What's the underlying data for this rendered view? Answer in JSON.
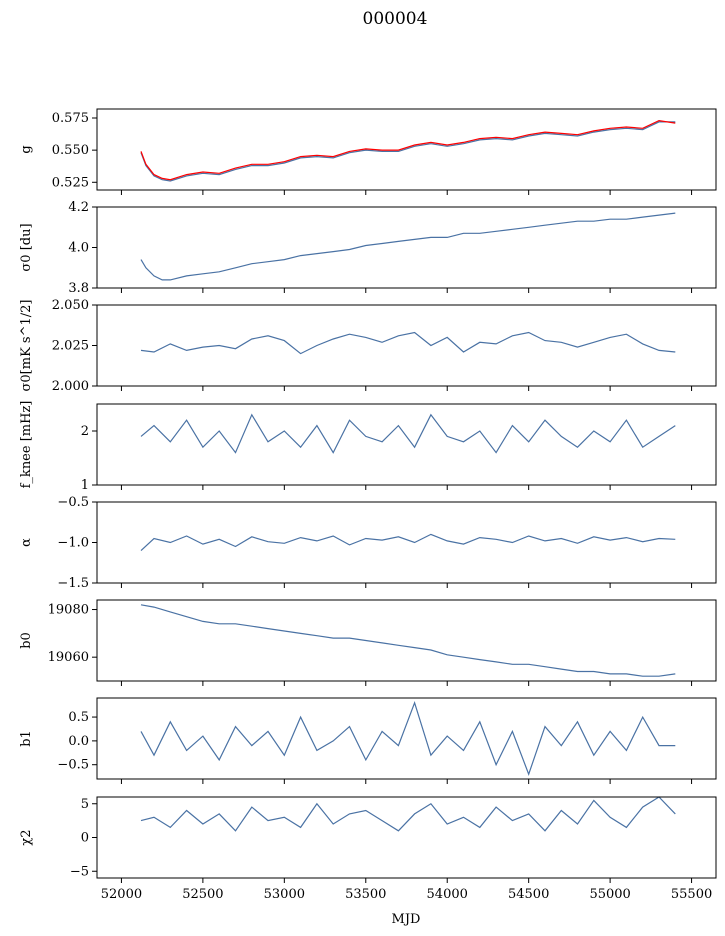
{
  "figure": {
    "title": "000004",
    "xlabel": "MJD",
    "series_color": "#4a72a4",
    "overlay_color": "#ff0000"
  },
  "chart_data": [
    {
      "type": "line",
      "ylabel": "g",
      "xlim": [
        51850,
        55650
      ],
      "ylim": [
        0.519,
        0.582
      ],
      "yticks": [
        "0.525",
        "0.550",
        "0.575"
      ],
      "ytick_values": [
        0.525,
        0.55,
        0.575
      ],
      "series": [
        {
          "x": [
            52120,
            52150,
            52200,
            52250,
            52300,
            52400,
            52500,
            52600,
            52700,
            52800,
            52900,
            53000,
            53100,
            53200,
            53300,
            53400,
            53500,
            53600,
            53700,
            53800,
            53900,
            54000,
            54100,
            54200,
            54300,
            54400,
            54500,
            54600,
            54700,
            54800,
            54900,
            55000,
            55100,
            55200,
            55300,
            55400
          ],
          "y": [
            0.548,
            0.538,
            0.53,
            0.527,
            0.526,
            0.53,
            0.532,
            0.531,
            0.535,
            0.538,
            0.538,
            0.54,
            0.544,
            0.545,
            0.544,
            0.548,
            0.55,
            0.549,
            0.549,
            0.553,
            0.555,
            0.553,
            0.555,
            0.558,
            0.559,
            0.558,
            0.561,
            0.563,
            0.562,
            0.561,
            0.564,
            0.566,
            0.567,
            0.566,
            0.572,
            0.572
          ]
        },
        {
          "x": [
            52120,
            52150,
            52200,
            52250,
            52300,
            52400,
            52500,
            52600,
            52700,
            52800,
            52900,
            53000,
            53100,
            53200,
            53300,
            53400,
            53500,
            53600,
            53700,
            53800,
            53900,
            54000,
            54100,
            54200,
            54300,
            54400,
            54500,
            54600,
            54700,
            54800,
            54900,
            55000,
            55100,
            55200,
            55300,
            55400
          ],
          "y": [
            0.549,
            0.539,
            0.531,
            0.528,
            0.527,
            0.531,
            0.533,
            0.532,
            0.536,
            0.539,
            0.539,
            0.541,
            0.545,
            0.546,
            0.545,
            0.549,
            0.551,
            0.55,
            0.55,
            0.554,
            0.556,
            0.554,
            0.556,
            0.559,
            0.56,
            0.559,
            0.562,
            0.564,
            0.563,
            0.562,
            0.565,
            0.567,
            0.568,
            0.567,
            0.573,
            0.571
          ]
        }
      ]
    },
    {
      "type": "line",
      "ylabel": "σ0 [du]",
      "xlim": [
        51850,
        55650
      ],
      "ylim": [
        3.8,
        4.2
      ],
      "yticks": [
        "3.8",
        "4.0",
        "4.2"
      ],
      "ytick_values": [
        3.8,
        4.0,
        4.2
      ],
      "x": [
        52120,
        52150,
        52200,
        52250,
        52300,
        52400,
        52500,
        52600,
        52700,
        52800,
        52900,
        53000,
        53100,
        53200,
        53300,
        53400,
        53500,
        53600,
        53700,
        53800,
        53900,
        54000,
        54100,
        54200,
        54300,
        54400,
        54500,
        54600,
        54700,
        54800,
        54900,
        55000,
        55100,
        55200,
        55300,
        55400
      ],
      "y": [
        3.94,
        3.9,
        3.86,
        3.84,
        3.84,
        3.86,
        3.87,
        3.88,
        3.9,
        3.92,
        3.93,
        3.94,
        3.96,
        3.97,
        3.98,
        3.99,
        4.01,
        4.02,
        4.03,
        4.04,
        4.05,
        4.05,
        4.07,
        4.07,
        4.08,
        4.09,
        4.1,
        4.11,
        4.12,
        4.13,
        4.13,
        4.14,
        4.14,
        4.15,
        4.16,
        4.17
      ]
    },
    {
      "type": "line",
      "ylabel": "σ0[mK s^1/2]",
      "xlim": [
        51850,
        55650
      ],
      "ylim": [
        2.0,
        2.05
      ],
      "yticks": [
        "2.000",
        "2.025",
        "2.050"
      ],
      "ytick_values": [
        2.0,
        2.025,
        2.05
      ],
      "x": [
        52120,
        52200,
        52300,
        52400,
        52500,
        52600,
        52700,
        52800,
        52900,
        53000,
        53100,
        53200,
        53300,
        53400,
        53500,
        53600,
        53700,
        53800,
        53900,
        54000,
        54100,
        54200,
        54300,
        54400,
        54500,
        54600,
        54700,
        54800,
        54900,
        55000,
        55100,
        55200,
        55300,
        55400
      ],
      "y": [
        2.022,
        2.021,
        2.026,
        2.022,
        2.024,
        2.025,
        2.023,
        2.029,
        2.031,
        2.028,
        2.02,
        2.025,
        2.029,
        2.032,
        2.03,
        2.027,
        2.031,
        2.033,
        2.025,
        2.03,
        2.021,
        2.027,
        2.026,
        2.031,
        2.033,
        2.028,
        2.027,
        2.024,
        2.027,
        2.03,
        2.032,
        2.026,
        2.022,
        2.021
      ]
    },
    {
      "type": "line",
      "ylabel": "f_knee [mHz]",
      "xlim": [
        51850,
        55650
      ],
      "ylim": [
        1.0,
        2.5
      ],
      "yticks": [
        "1",
        "2"
      ],
      "ytick_values": [
        1,
        2
      ],
      "x": [
        52120,
        52200,
        52300,
        52400,
        52500,
        52600,
        52700,
        52800,
        52900,
        53000,
        53100,
        53200,
        53300,
        53400,
        53500,
        53600,
        53700,
        53800,
        53900,
        54000,
        54100,
        54200,
        54300,
        54400,
        54500,
        54600,
        54700,
        54800,
        54900,
        55000,
        55100,
        55200,
        55300,
        55400
      ],
      "y": [
        1.9,
        2.1,
        1.8,
        2.2,
        1.7,
        2.0,
        1.6,
        2.3,
        1.8,
        2.0,
        1.7,
        2.1,
        1.6,
        2.2,
        1.9,
        1.8,
        2.1,
        1.7,
        2.3,
        1.9,
        1.8,
        2.0,
        1.6,
        2.1,
        1.8,
        2.2,
        1.9,
        1.7,
        2.0,
        1.8,
        2.2,
        1.7,
        1.9,
        2.1
      ]
    },
    {
      "type": "line",
      "ylabel": "α",
      "xlim": [
        51850,
        55650
      ],
      "ylim": [
        -1.5,
        -0.5
      ],
      "yticks": [
        "−1.5",
        "−1.0",
        "−0.5"
      ],
      "ytick_values": [
        -1.5,
        -1.0,
        -0.5
      ],
      "x": [
        52120,
        52200,
        52300,
        52400,
        52500,
        52600,
        52700,
        52800,
        52900,
        53000,
        53100,
        53200,
        53300,
        53400,
        53500,
        53600,
        53700,
        53800,
        53900,
        54000,
        54100,
        54200,
        54300,
        54400,
        54500,
        54600,
        54700,
        54800,
        54900,
        55000,
        55100,
        55200,
        55300,
        55400
      ],
      "y": [
        -1.1,
        -0.95,
        -1.0,
        -0.92,
        -1.02,
        -0.96,
        -1.05,
        -0.93,
        -0.99,
        -1.01,
        -0.94,
        -0.98,
        -0.92,
        -1.03,
        -0.95,
        -0.97,
        -0.93,
        -1.0,
        -0.9,
        -0.98,
        -1.02,
        -0.94,
        -0.96,
        -1.0,
        -0.92,
        -0.98,
        -0.95,
        -1.01,
        -0.93,
        -0.97,
        -0.94,
        -0.99,
        -0.95,
        -0.96
      ]
    },
    {
      "type": "line",
      "ylabel": "b0",
      "xlim": [
        51850,
        55650
      ],
      "ylim": [
        19050,
        19084
      ],
      "yticks": [
        "19060",
        "19080"
      ],
      "ytick_values": [
        19060,
        19080
      ],
      "x": [
        52120,
        52200,
        52300,
        52400,
        52500,
        52600,
        52700,
        52800,
        52900,
        53000,
        53100,
        53200,
        53300,
        53400,
        53500,
        53600,
        53700,
        53800,
        53900,
        54000,
        54100,
        54200,
        54300,
        54400,
        54500,
        54600,
        54700,
        54800,
        54900,
        55000,
        55100,
        55200,
        55300,
        55400
      ],
      "y": [
        19082,
        19081,
        19079,
        19077,
        19075,
        19074,
        19074,
        19073,
        19072,
        19071,
        19070,
        19069,
        19068,
        19068,
        19067,
        19066,
        19065,
        19064,
        19063,
        19061,
        19060,
        19059,
        19058,
        19057,
        19057,
        19056,
        19055,
        19054,
        19054,
        19053,
        19053,
        19052,
        19052,
        19053
      ]
    },
    {
      "type": "line",
      "ylabel": "b1",
      "xlim": [
        51850,
        55650
      ],
      "ylim": [
        -0.8,
        0.9
      ],
      "yticks": [
        "−0.5",
        "0.0",
        "0.5"
      ],
      "ytick_values": [
        -0.5,
        0.0,
        0.5
      ],
      "x": [
        52120,
        52200,
        52300,
        52400,
        52500,
        52600,
        52700,
        52800,
        52900,
        53000,
        53100,
        53200,
        53300,
        53400,
        53500,
        53600,
        53700,
        53800,
        53900,
        54000,
        54100,
        54200,
        54300,
        54400,
        54500,
        54600,
        54700,
        54800,
        54900,
        55000,
        55100,
        55200,
        55300,
        55400
      ],
      "y": [
        0.2,
        -0.3,
        0.4,
        -0.2,
        0.1,
        -0.4,
        0.3,
        -0.1,
        0.2,
        -0.3,
        0.5,
        -0.2,
        0.0,
        0.3,
        -0.4,
        0.2,
        -0.1,
        0.8,
        -0.3,
        0.1,
        -0.2,
        0.4,
        -0.5,
        0.2,
        -0.7,
        0.3,
        -0.1,
        0.4,
        -0.3,
        0.2,
        -0.2,
        0.5,
        -0.1,
        -0.1
      ]
    },
    {
      "type": "line",
      "ylabel": "χ2",
      "xlim": [
        51850,
        55650
      ],
      "ylim": [
        -6,
        6
      ],
      "yticks": [
        "−5",
        "0",
        "5"
      ],
      "ytick_values": [
        -5,
        0,
        5
      ],
      "x": [
        52120,
        52200,
        52300,
        52400,
        52500,
        52600,
        52700,
        52800,
        52900,
        53000,
        53100,
        53200,
        53300,
        53400,
        53500,
        53600,
        53700,
        53800,
        53900,
        54000,
        54100,
        54200,
        54300,
        54400,
        54500,
        54600,
        54700,
        54800,
        54900,
        55000,
        55100,
        55200,
        55300,
        55400
      ],
      "y": [
        2.5,
        3.0,
        1.5,
        4.0,
        2.0,
        3.5,
        1.0,
        4.5,
        2.5,
        3.0,
        1.5,
        5.0,
        2.0,
        3.5,
        4.0,
        2.5,
        1.0,
        3.5,
        5.0,
        2.0,
        3.0,
        1.5,
        4.5,
        2.5,
        3.5,
        1.0,
        4.0,
        2.0,
        5.5,
        3.0,
        1.5,
        4.5,
        6.0,
        3.5
      ]
    }
  ],
  "x_axis": {
    "ticks": [
      "52000",
      "52500",
      "53000",
      "53500",
      "54000",
      "54500",
      "55000",
      "55500"
    ],
    "tick_values": [
      52000,
      52500,
      53000,
      53500,
      54000,
      54500,
      55000,
      55500
    ]
  }
}
